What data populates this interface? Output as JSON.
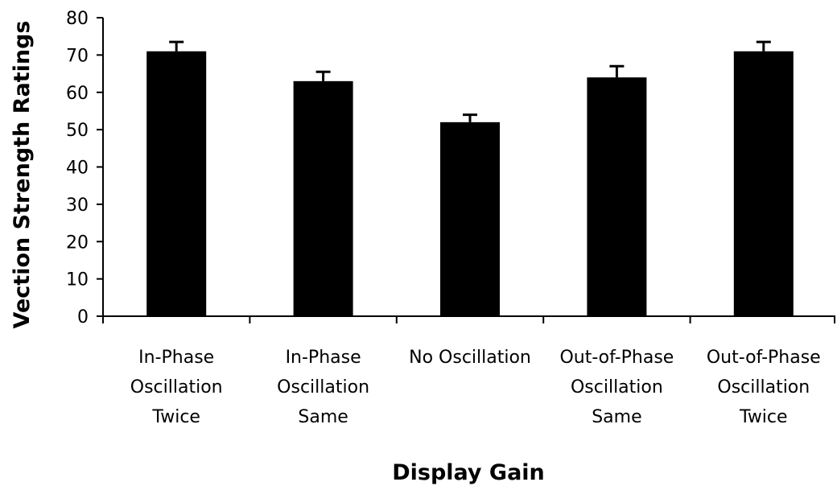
{
  "chart_data": {
    "type": "bar",
    "categories": [
      [
        "In-Phase",
        "Oscillation",
        "Twice"
      ],
      [
        "In-Phase",
        "Oscillation",
        "Same"
      ],
      [
        "No Oscillation"
      ],
      [
        "Out-of-Phase",
        "Oscillation",
        "Same"
      ],
      [
        "Out-of-Phase",
        "Oscillation",
        "Twice"
      ]
    ],
    "values": [
      71,
      63,
      52,
      64,
      71
    ],
    "error": [
      2.5,
      2.5,
      2,
      3,
      2.5
    ],
    "xlabel": "Display Gain",
    "ylabel": "Vection Strength Ratings",
    "ylim": [
      0,
      80
    ],
    "yticks": [
      0,
      10,
      20,
      30,
      40,
      50,
      60,
      70,
      80
    ],
    "grid": false,
    "legend": "none",
    "bar_color": "#000000"
  }
}
